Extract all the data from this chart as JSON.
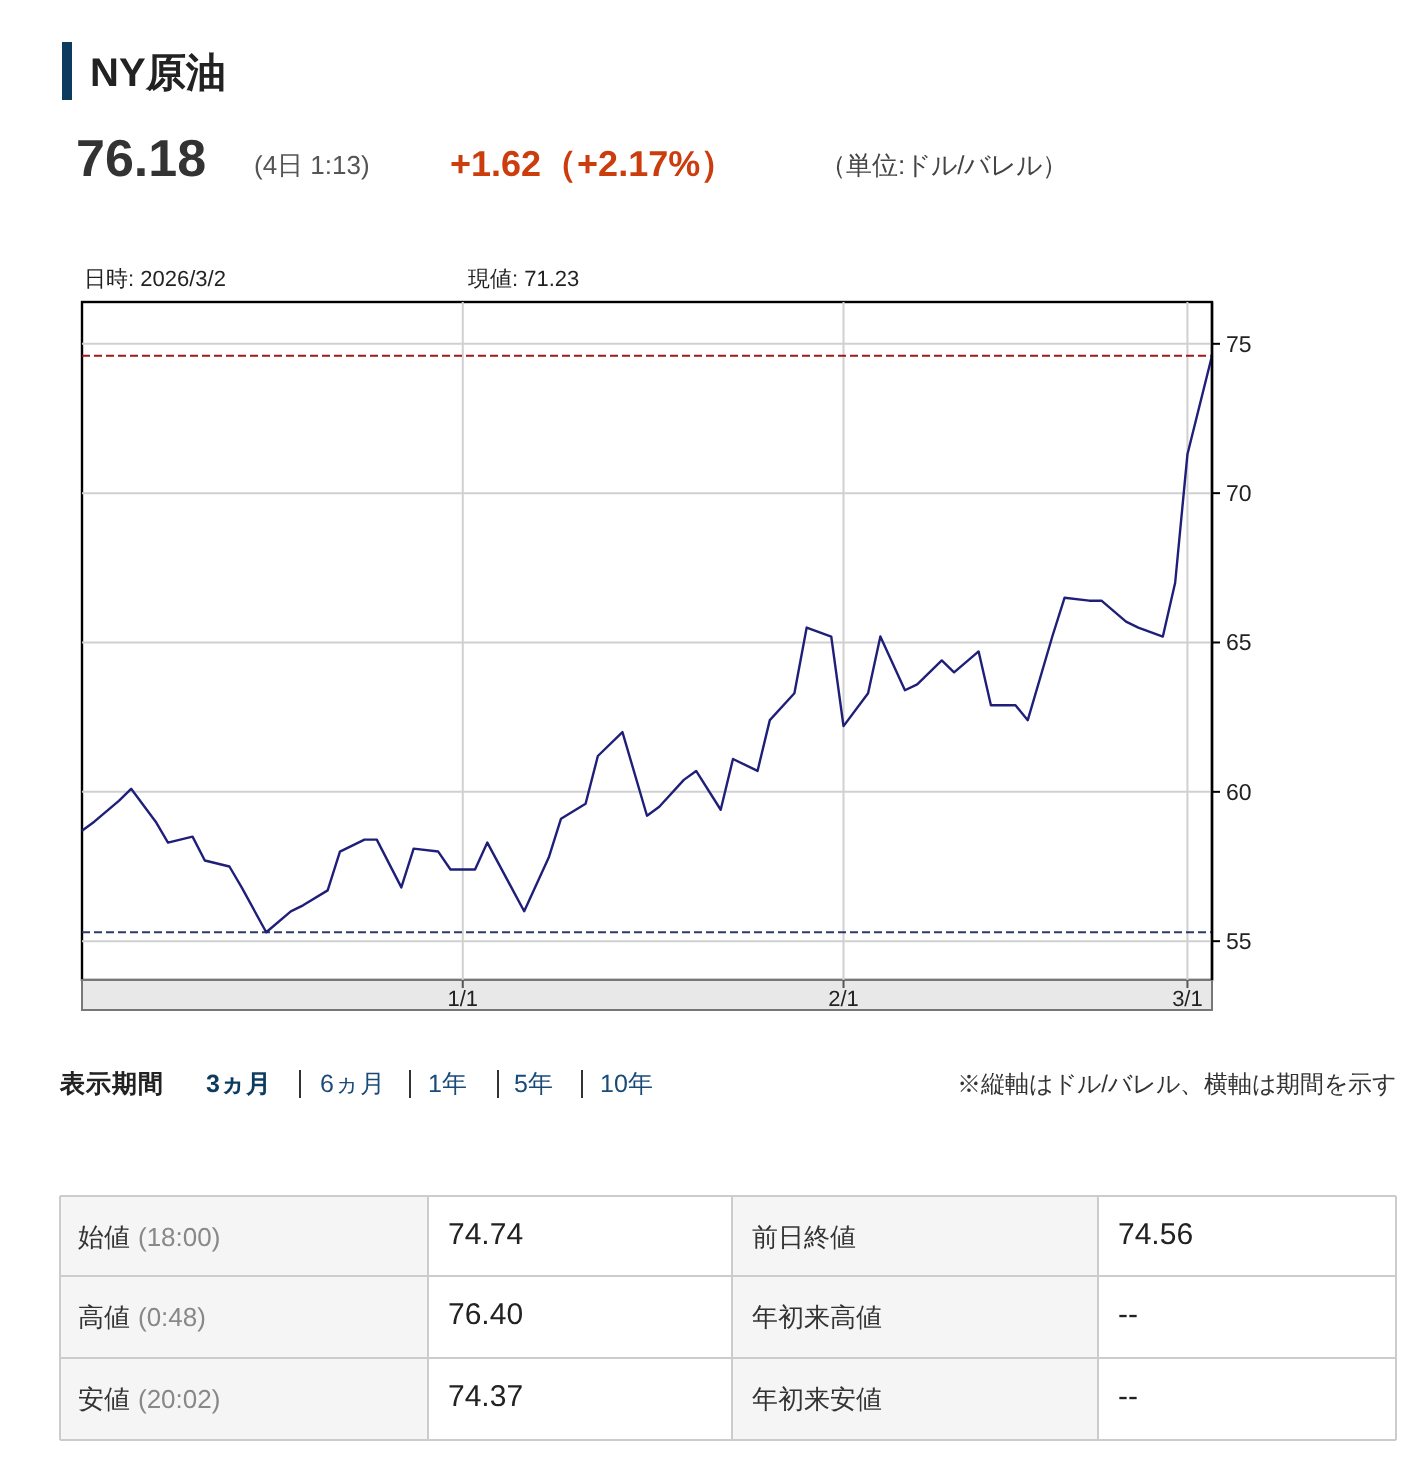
{
  "chart_data": {
    "type": "line",
    "title": "NY原油",
    "annotations": [
      "76.18",
      "(4日 1:13)",
      "+1.62（+2.17%）",
      "（単位:ドル/バレル）",
      "日時: 2026/3/2",
      "現値: 71.23",
      "表示期間",
      "3ヵ月",
      "6ヵ月",
      "1年",
      "5年",
      "10年",
      "※縦軸はドル/バレル、横軸は期間を示す",
      "始値",
      "(18:00)",
      "74.74",
      "前日終値",
      "74.56",
      "高値",
      "(0:48)",
      "76.40",
      "年初来高値",
      "--",
      "安値",
      "(20:02)",
      "74.37",
      "年初来安値",
      "--"
    ],
    "x": [
      "2025-12-01",
      "2025-12-02",
      "2025-12-04",
      "2025-12-05",
      "2025-12-07",
      "2025-12-08",
      "2025-12-10",
      "2025-12-11",
      "2025-12-13",
      "2025-12-14",
      "2025-12-16",
      "2025-12-18",
      "2025-12-19",
      "2025-12-21",
      "2025-12-22",
      "2025-12-24",
      "2025-12-25",
      "2025-12-27",
      "2025-12-28",
      "2025-12-30",
      "2025-12-31",
      "2026-01-02",
      "2026-01-03",
      "2026-01-06",
      "2026-01-08",
      "2026-01-09",
      "2026-01-11",
      "2026-01-12",
      "2026-01-14",
      "2026-01-16",
      "2026-01-17",
      "2026-01-19",
      "2026-01-20",
      "2026-01-22",
      "2026-01-23",
      "2026-01-25",
      "2026-01-26",
      "2026-01-28",
      "2026-01-29",
      "2026-01-31",
      "2026-02-01",
      "2026-02-03",
      "2026-02-04",
      "2026-02-06",
      "2026-02-07",
      "2026-02-09",
      "2026-02-10",
      "2026-02-12",
      "2026-02-13",
      "2026-02-15",
      "2026-02-16",
      "2026-02-18",
      "2026-02-19",
      "2026-02-21",
      "2026-02-22",
      "2026-02-24",
      "2026-02-25",
      "2026-02-27",
      "2026-02-28",
      "2026-03-01",
      "2026-03-03"
    ],
    "series": [
      {
        "color": "#1f1f7a",
        "values": [
          58.7,
          59.0,
          59.7,
          60.1,
          59.0,
          58.3,
          58.5,
          57.7,
          57.5,
          56.8,
          55.3,
          56.0,
          56.2,
          56.7,
          58.0,
          58.4,
          58.4,
          56.8,
          58.1,
          58.0,
          57.4,
          57.4,
          58.3,
          56.0,
          57.8,
          59.1,
          59.6,
          61.2,
          62.0,
          59.2,
          59.5,
          60.4,
          60.7,
          59.4,
          61.1,
          60.7,
          62.4,
          63.3,
          65.5,
          65.2,
          62.2,
          63.3,
          65.2,
          63.4,
          63.6,
          64.4,
          64.0,
          64.7,
          62.9,
          62.9,
          62.4,
          65.2,
          66.5,
          66.4,
          66.4,
          65.7,
          65.5,
          65.2,
          67.0,
          71.3,
          74.6
        ]
      }
    ],
    "xlim": [
      "2025-12-01",
      "2026-03-03"
    ],
    "xticks": [
      {
        "value": "2026-01-01",
        "label": "1/1"
      },
      {
        "value": "2026-02-01",
        "label": "2/1"
      },
      {
        "value": "2026-03-01",
        "label": "3/1"
      }
    ],
    "ylim": [
      53.7,
      76.4
    ],
    "yticks": [
      55,
      60,
      65,
      70,
      75
    ],
    "grid": true,
    "ref_lines": [
      {
        "axis": "y",
        "value": 74.6,
        "color": "#a01818",
        "line_style": "dashed"
      },
      {
        "axis": "y",
        "value": 55.3,
        "color": "#2a3a6a",
        "line_style": "dashed"
      }
    ]
  }
}
